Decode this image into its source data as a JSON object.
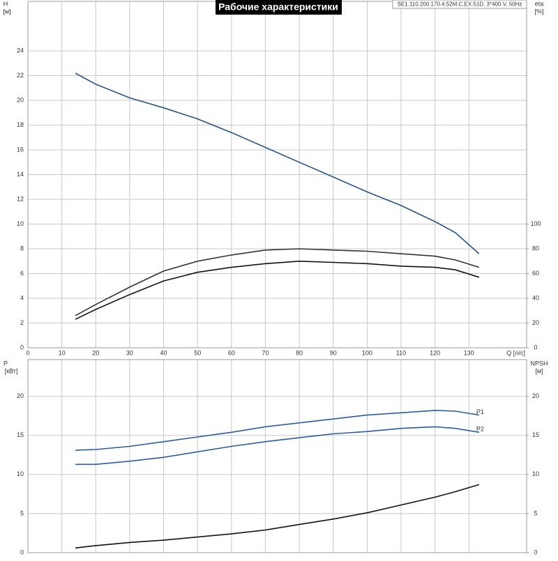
{
  "chart_data": [
    {
      "type": "line",
      "title": "Рабочие характеристики",
      "subtitle": "SE1.110.200.170.4.52M.C.EX.51D, 3*400 V, 50Hz",
      "ylabel": "H",
      "yunit": "[м]",
      "y2label": "eta",
      "y2unit": "[%]",
      "xlabel": "Q [л/с]",
      "x": [
        14,
        20,
        30,
        40,
        50,
        60,
        70,
        80,
        90,
        100,
        110,
        120,
        126,
        133
      ],
      "xlim": [
        0,
        147
      ],
      "xticks": [
        0,
        10,
        20,
        30,
        40,
        50,
        60,
        70,
        80,
        90,
        100,
        110,
        120,
        130
      ],
      "xtick_labels": true,
      "ylim": [
        0,
        28
      ],
      "yticks": [
        0,
        2,
        4,
        6,
        8,
        10,
        12,
        14,
        16,
        18,
        20,
        22,
        24
      ],
      "y2lim": [
        0,
        280
      ],
      "y2ticks": [
        0,
        20,
        40,
        60,
        80,
        100
      ],
      "grid": true,
      "series": [
        {
          "color": "#24538c",
          "values": [
            22.2,
            21.3,
            20.2,
            19.4,
            18.5,
            17.4,
            16.2,
            15,
            13.8,
            12.6,
            11.5,
            10.2,
            9.3,
            7.6
          ]
        },
        {
          "color": "#333333",
          "axis": "y2",
          "values": [
            26,
            35,
            49,
            62,
            70,
            75,
            79,
            80,
            79,
            78,
            76,
            74,
            71,
            65
          ]
        },
        {
          "color": "#111111",
          "axis": "y2",
          "values": [
            23,
            31,
            43,
            54,
            61,
            65,
            68,
            70,
            69,
            68,
            66,
            65,
            63,
            57
          ]
        }
      ]
    },
    {
      "type": "line",
      "ylabel": "P",
      "yunit": "[кВт]",
      "y2label": "NPSH",
      "y2unit": "[м]",
      "x": [
        14,
        20,
        30,
        40,
        50,
        60,
        70,
        80,
        90,
        100,
        110,
        120,
        126,
        133
      ],
      "xlim": [
        0,
        147
      ],
      "xticks": [
        0,
        10,
        20,
        30,
        40,
        50,
        60,
        70,
        80,
        90,
        100,
        110,
        120,
        130
      ],
      "xtick_labels": false,
      "ylim": [
        0,
        24.7
      ],
      "yticks": [
        0,
        5,
        10,
        15,
        20
      ],
      "y2lim": [
        0,
        24.7
      ],
      "y2ticks": [
        0,
        5,
        10,
        15,
        20
      ],
      "grid": true,
      "series": [
        {
          "name": "P1",
          "color": "#2a5d9f",
          "values": [
            13.1,
            13.2,
            13.6,
            14.2,
            14.8,
            15.4,
            16.1,
            16.6,
            17.1,
            17.6,
            17.9,
            18.2,
            18.1,
            17.6
          ]
        },
        {
          "name": "P2",
          "color": "#2a5d9f",
          "values": [
            11.3,
            11.3,
            11.7,
            12.2,
            12.9,
            13.6,
            14.2,
            14.7,
            15.2,
            15.5,
            15.9,
            16.1,
            15.9,
            15.4
          ]
        },
        {
          "color": "#111111",
          "axis": "y2",
          "values": [
            0.6,
            0.9,
            1.3,
            1.6,
            2.0,
            2.4,
            2.9,
            3.6,
            4.3,
            5.1,
            6.1,
            7.1,
            7.8,
            8.7
          ]
        }
      ]
    }
  ]
}
